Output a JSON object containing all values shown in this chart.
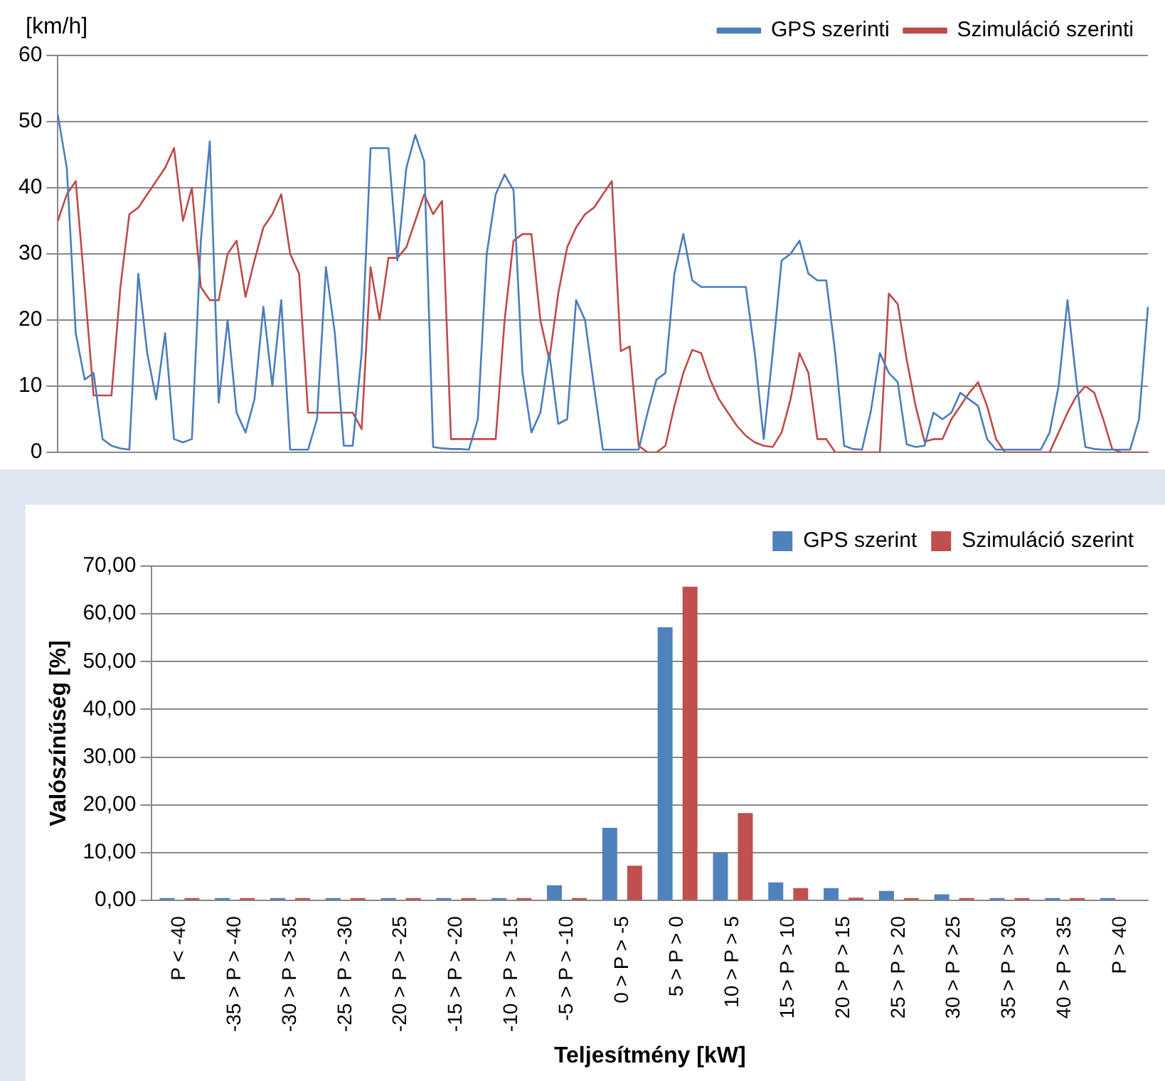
{
  "chart_data": [
    {
      "type": "line",
      "ylabel": "[km/h]",
      "ylim": [
        0,
        60
      ],
      "yticks": [
        0,
        10,
        20,
        30,
        40,
        50,
        60
      ],
      "grid": "y",
      "legend": "top right",
      "tick_labels": "y",
      "marker": "none",
      "categories": [
        null,
        null,
        null,
        null,
        null,
        null,
        null,
        null,
        null,
        null,
        null,
        null,
        null,
        null,
        null,
        null,
        null,
        null,
        null,
        null,
        null,
        null,
        null,
        null,
        null,
        null,
        null,
        null,
        null,
        null,
        null,
        null,
        null,
        null,
        null,
        null,
        null,
        null,
        null,
        null,
        null,
        null,
        null,
        null,
        null,
        null,
        null,
        null,
        null,
        null,
        null,
        null,
        null,
        null,
        null,
        null,
        null,
        null,
        null,
        null,
        null,
        null,
        null,
        null,
        null,
        null,
        null,
        null,
        null,
        null,
        null,
        null,
        null,
        null,
        null,
        null,
        null,
        null,
        null,
        null,
        null,
        null,
        null,
        null,
        null,
        null,
        null,
        null,
        null,
        null,
        null,
        null,
        null,
        null,
        null,
        null,
        null,
        null,
        null,
        null,
        null,
        null,
        null,
        null,
        null,
        null,
        null,
        null,
        null,
        null,
        null,
        null,
        null,
        null,
        null,
        null,
        null,
        null,
        null,
        null,
        null,
        null,
        null
      ],
      "series": [
        {
          "name": "GPS szerinti",
          "color": "#4a7ebb",
          "values": [
            51,
            43,
            18,
            11,
            12,
            2,
            1,
            0.6,
            0.4,
            27,
            15,
            8,
            18,
            2,
            1.5,
            2,
            32,
            47,
            7.5,
            20,
            6,
            3,
            8,
            22,
            10,
            23,
            0.4,
            0.4,
            0.4,
            5,
            28,
            18,
            1,
            1,
            15,
            46,
            46,
            46,
            29,
            43,
            48,
            44,
            0.8,
            0.6,
            0.5,
            0.5,
            0.4,
            5,
            30,
            39,
            42,
            39.6,
            12,
            3,
            6,
            15,
            4.3,
            5,
            23,
            20,
            10,
            0.4,
            0.4,
            0.4,
            0.4,
            0.4,
            6,
            11,
            12,
            27,
            33,
            26,
            25,
            25,
            25,
            25,
            25,
            25,
            15,
            2,
            15,
            29,
            30,
            32,
            27,
            26,
            26,
            15,
            1,
            0.5,
            0.4,
            6.3,
            15,
            12,
            10.6,
            1.2,
            0.8,
            1,
            6,
            5,
            6,
            9,
            8,
            7,
            2,
            0.4,
            0.4,
            0.4,
            0.4,
            0.4,
            0.4,
            3,
            10,
            23,
            10.6,
            0.8,
            0.5,
            0.4,
            0.4,
            0.4,
            0.4,
            5,
            22
          ]
        },
        {
          "name": "Szimuláció szerinti",
          "color": "#be4b48",
          "values": [
            35,
            39,
            41,
            25,
            8.6,
            8.6,
            8.6,
            25,
            36,
            37,
            39,
            41,
            43,
            46,
            35,
            40,
            25,
            23,
            23,
            30,
            32,
            23.5,
            29,
            34,
            36,
            39,
            30,
            27,
            6,
            6,
            6,
            6,
            6,
            6,
            3.5,
            28,
            20,
            29.4,
            29.4,
            31,
            35,
            39,
            36,
            38,
            2,
            2,
            2,
            2,
            2,
            2,
            20,
            32,
            33,
            33,
            20,
            14,
            24,
            31,
            34,
            36,
            37,
            39,
            41,
            15.3,
            16,
            1,
            0,
            0,
            1,
            7,
            12,
            15.5,
            15,
            11,
            8,
            6,
            4,
            2.5,
            1.5,
            1,
            0.8,
            3,
            8,
            15,
            12,
            2,
            2,
            0,
            0,
            0,
            0,
            0,
            0,
            24,
            22.4,
            14,
            7,
            1.6,
            2,
            2,
            5,
            7,
            9,
            10.6,
            7,
            2,
            0,
            0,
            0,
            0,
            0,
            0,
            3,
            6,
            8.5,
            10,
            9,
            5,
            0.5,
            0,
            0,
            0,
            0
          ]
        }
      ]
    },
    {
      "type": "bar",
      "xlabel": "Teljesítmény [kW]",
      "ylabel": "Valószínűség [%]",
      "ylim": [
        0,
        70
      ],
      "yticks": [
        {
          "value": 0,
          "label": "0,00"
        },
        {
          "value": 10,
          "label": "10,00"
        },
        {
          "value": 20,
          "label": "20,00"
        },
        {
          "value": 30,
          "label": "30,00"
        },
        {
          "value": 40,
          "label": "40,00"
        },
        {
          "value": 50,
          "label": "50,00"
        },
        {
          "value": 60,
          "label": "60,00"
        },
        {
          "value": 70,
          "label": "70,00"
        }
      ],
      "grid": "y",
      "legend": "top right",
      "categories": [
        "P < -40",
        "-35 > P > -40",
        "-30 > P > -35",
        "-25 > P > -30",
        "-20 > P > -25",
        "-15 > P > -20",
        "-10 > P > -15",
        "-5 > P > -10",
        "0 > P > -5",
        "5 > P > 0",
        "10 > P > 5",
        "15 > P > 10",
        "20 > P > 15",
        "25 > P > 20",
        "30 > P > 25",
        "35 > P > 30",
        "40 > P > 35",
        "P > 40"
      ],
      "series": [
        {
          "name": "GPS szerint",
          "color": "#4f81bd",
          "values": [
            0.5,
            0.5,
            0.5,
            0.5,
            0.5,
            0.5,
            0.5,
            3.2,
            15.2,
            57.2,
            10,
            3.8,
            2.6,
            2,
            1.3,
            0.5,
            0.5,
            0.5
          ]
        },
        {
          "name": "Szimuláció szerint",
          "color": "#c0504d",
          "values": [
            0.5,
            0.5,
            0.5,
            0.5,
            0.5,
            0.5,
            0.5,
            0.5,
            7.3,
            65.7,
            18.3,
            2.6,
            0.6,
            0.5,
            0.5,
            0.5,
            0.5,
            0
          ]
        }
      ]
    }
  ]
}
